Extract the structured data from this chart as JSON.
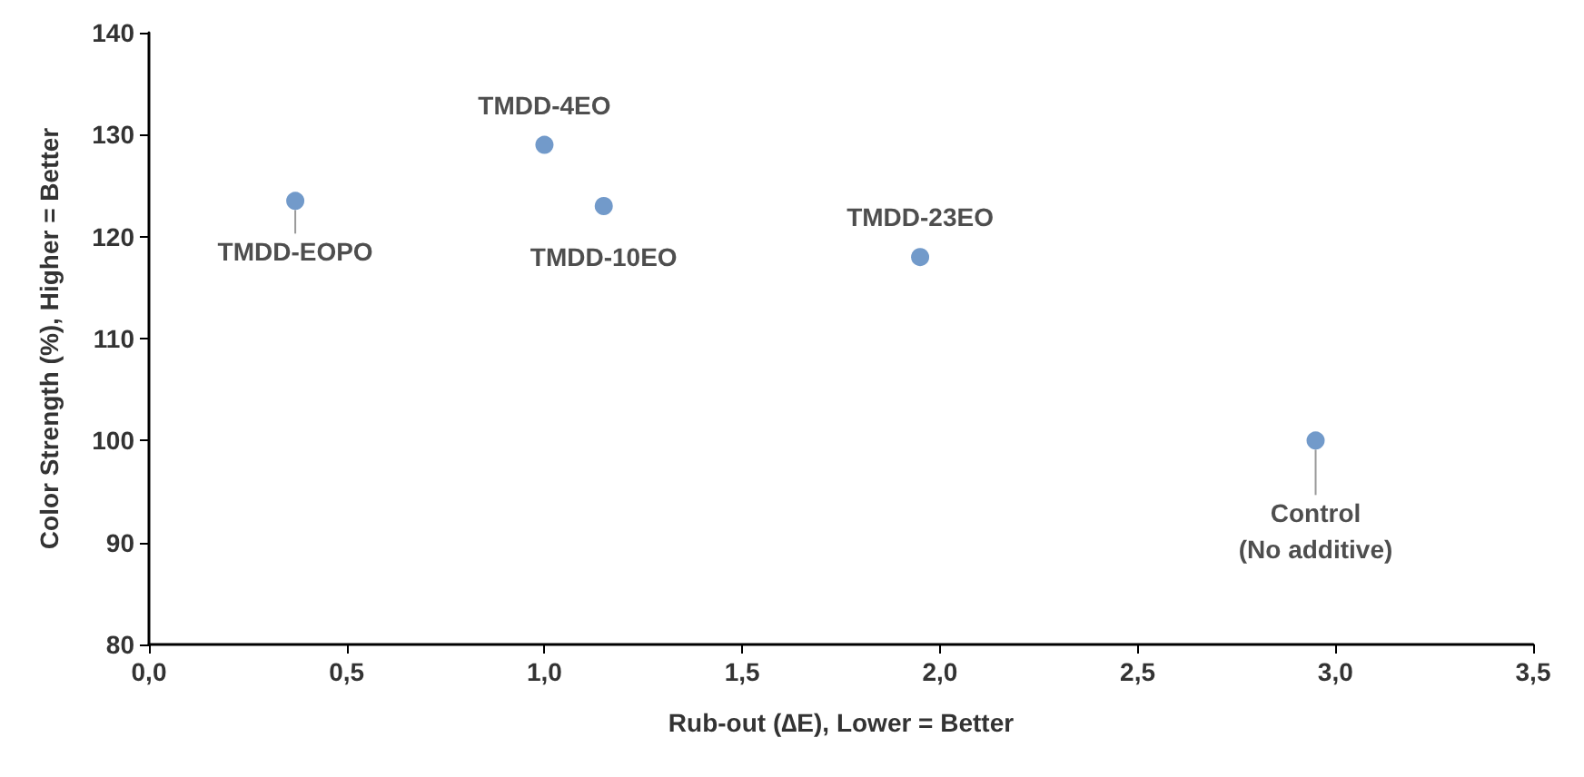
{
  "chart_data": {
    "type": "scatter",
    "xlabel": "Rub-out (∆E), Lower = Better",
    "ylabel": "Color Strength (%), Higher = Better",
    "x": [
      0.37,
      1.0,
      1.15,
      1.95,
      2.95
    ],
    "series": [
      {
        "color": "#4f81bd",
        "values": [
          123.5,
          129,
          123,
          118,
          100
        ]
      }
    ],
    "annotations": [
      {
        "text": "TMDD-EOPO",
        "x": 0.37,
        "y": 123.5
      },
      {
        "text": "TMDD-4EO",
        "x": 1.0,
        "y": 129
      },
      {
        "text": "TMDD-10EO",
        "x": 1.15,
        "y": 123
      },
      {
        "text": "TMDD-23EO",
        "x": 1.95,
        "y": 118
      },
      {
        "text": "Control\n(No additive)",
        "x": 2.95,
        "y": 100
      }
    ],
    "xlim": [
      0,
      3.5
    ],
    "xticks": [
      {
        "value": 0,
        "label": "0,0"
      },
      {
        "value": 0.5,
        "label": "0,5"
      },
      {
        "value": 1,
        "label": "1,0"
      },
      {
        "value": 1.5,
        "label": "1,5"
      },
      {
        "value": 2,
        "label": "2,0"
      },
      {
        "value": 2.5,
        "label": "2,5"
      },
      {
        "value": 3,
        "label": "3,0"
      },
      {
        "value": 3.5,
        "label": "3,5"
      }
    ],
    "ylim": [
      80,
      140
    ],
    "yticks": [
      80,
      90,
      100,
      110,
      120,
      130,
      140
    ],
    "marker": "circle"
  }
}
